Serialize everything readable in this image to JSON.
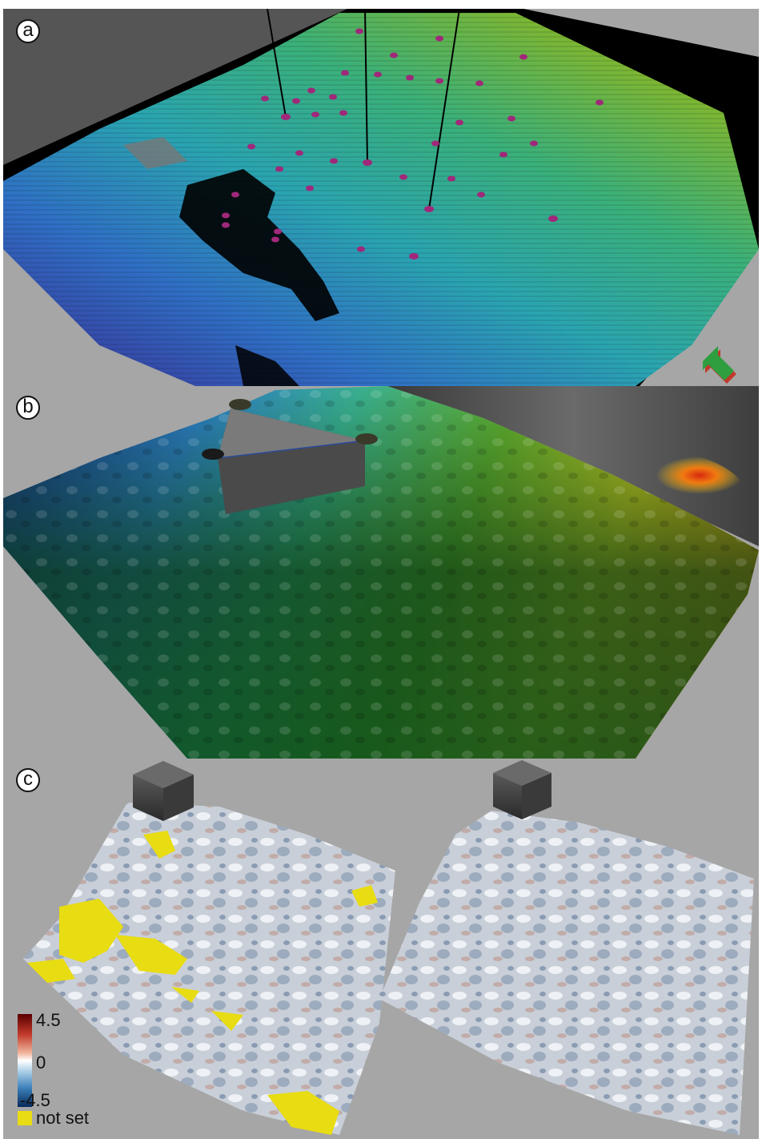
{
  "panels": {
    "a": {
      "label": "a"
    },
    "b": {
      "label": "b"
    },
    "c": {
      "label": "c"
    }
  },
  "legend": {
    "max_label": "4.5",
    "mid_label": "0",
    "min_label": "-4.5",
    "not_set_label": "not set",
    "colors": {
      "max": "#5a0000",
      "mid": "#ffffff",
      "min": "#062a5c",
      "not_set": "#e8dc12"
    }
  },
  "colors": {
    "background_gray": "#a6a6a6",
    "well_marker": "#a0287a",
    "horizon_low": "#3b2a8f",
    "horizon_high": "#a8c51a"
  },
  "icons": [
    "orientation-arrow-icon"
  ]
}
